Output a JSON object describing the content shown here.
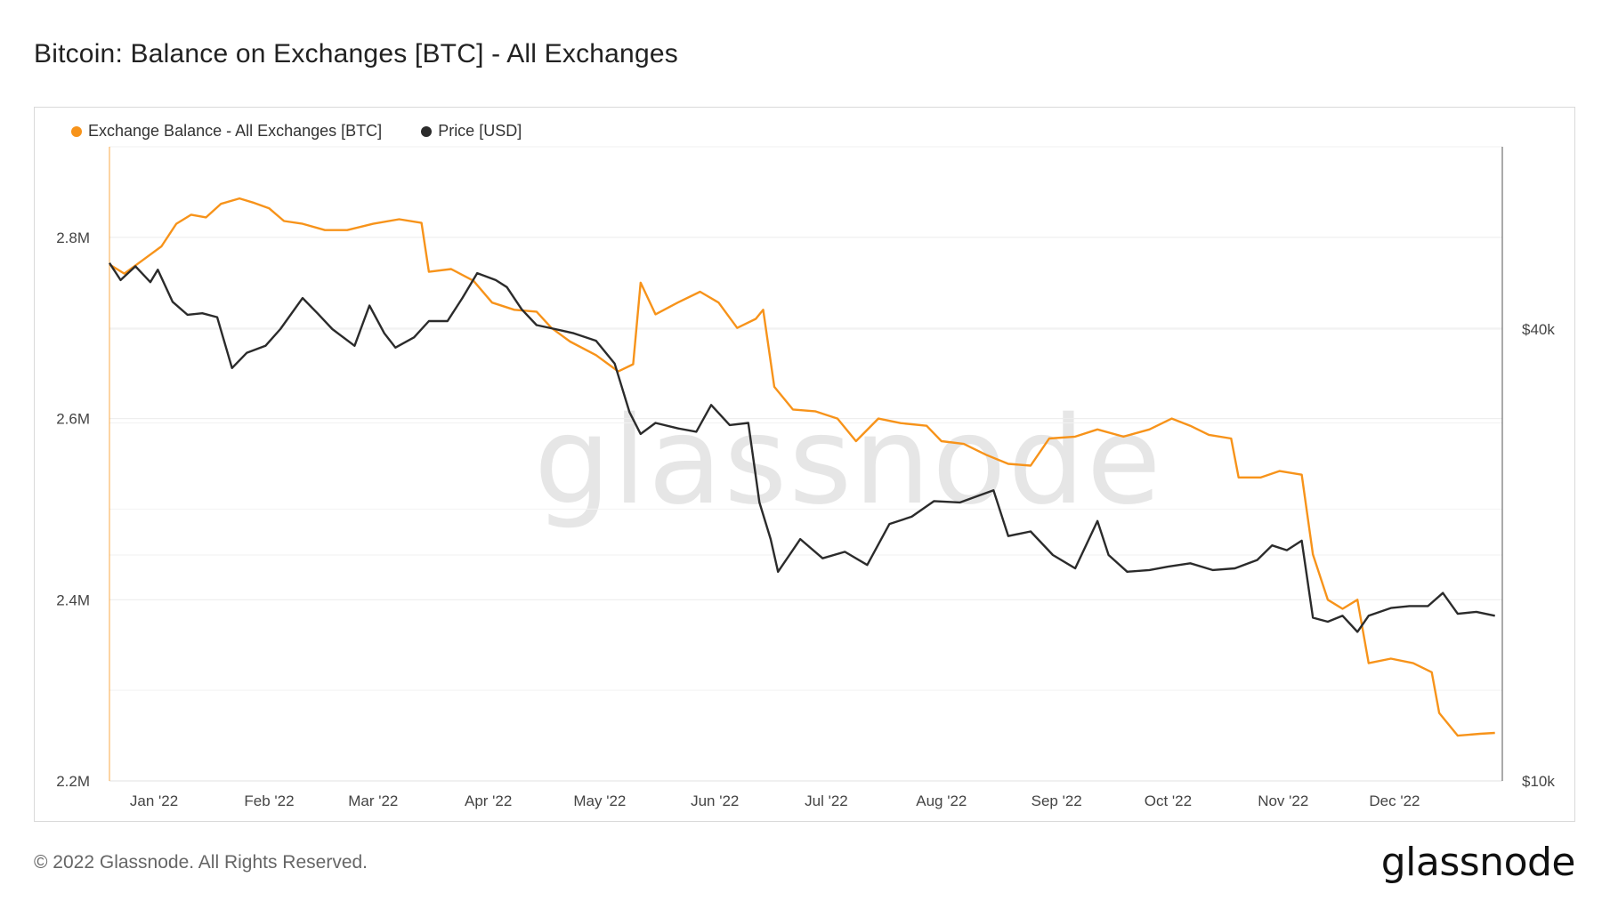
{
  "title": "Bitcoin: Balance on Exchanges [BTC] - All Exchanges",
  "footer": {
    "copyright": "© 2022 Glassnode. All Rights Reserved.",
    "logo": "glassnode"
  },
  "watermark": "glassnode",
  "chart_data": {
    "type": "line",
    "title": "Bitcoin: Balance on Exchanges [BTC] - All Exchanges",
    "x_range": [
      "2021-12-20",
      "2022-12-30"
    ],
    "x_ticks": [
      {
        "date": "2022-01-01",
        "label": "Jan '22"
      },
      {
        "date": "2022-02-01",
        "label": "Feb '22"
      },
      {
        "date": "2022-03-01",
        "label": "Mar '22"
      },
      {
        "date": "2022-04-01",
        "label": "Apr '22"
      },
      {
        "date": "2022-05-01",
        "label": "May '22"
      },
      {
        "date": "2022-06-01",
        "label": "Jun '22"
      },
      {
        "date": "2022-07-01",
        "label": "Jul '22"
      },
      {
        "date": "2022-08-01",
        "label": "Aug '22"
      },
      {
        "date": "2022-09-01",
        "label": "Sep '22"
      },
      {
        "date": "2022-10-01",
        "label": "Oct '22"
      },
      {
        "date": "2022-11-01",
        "label": "Nov '22"
      },
      {
        "date": "2022-12-01",
        "label": "Dec '22"
      }
    ],
    "y_left": {
      "scale": "linear",
      "ylim": [
        2200000,
        2900000
      ],
      "ticks": [
        {
          "value": 2200000,
          "label": "2.2M"
        },
        {
          "value": 2400000,
          "label": "2.4M"
        },
        {
          "value": 2600000,
          "label": "2.6M"
        },
        {
          "value": 2800000,
          "label": "2.8M"
        }
      ]
    },
    "y_right": {
      "scale": "log",
      "ylim": [
        10000,
        70000
      ],
      "ticks": [
        {
          "value": 10000,
          "label": "$10k"
        },
        {
          "value": 40000,
          "label": "$40k"
        }
      ]
    },
    "grid": true,
    "legend_position": "top-left",
    "series": [
      {
        "name": "Exchange Balance - All Exchanges [BTC]",
        "axis": "left",
        "color": "#f7931a",
        "points": [
          [
            "2021-12-20",
            2770000
          ],
          [
            "2021-12-24",
            2760000
          ],
          [
            "2021-12-29",
            2775000
          ],
          [
            "2022-01-03",
            2790000
          ],
          [
            "2022-01-07",
            2815000
          ],
          [
            "2022-01-11",
            2825000
          ],
          [
            "2022-01-15",
            2822000
          ],
          [
            "2022-01-19",
            2837000
          ],
          [
            "2022-01-24",
            2843000
          ],
          [
            "2022-01-28",
            2838000
          ],
          [
            "2022-02-01",
            2832000
          ],
          [
            "2022-02-05",
            2818000
          ],
          [
            "2022-02-10",
            2815000
          ],
          [
            "2022-02-16",
            2808000
          ],
          [
            "2022-02-22",
            2808000
          ],
          [
            "2022-03-01",
            2815000
          ],
          [
            "2022-03-08",
            2820000
          ],
          [
            "2022-03-14",
            2816000
          ],
          [
            "2022-03-16",
            2762000
          ],
          [
            "2022-03-22",
            2765000
          ],
          [
            "2022-03-28",
            2752000
          ],
          [
            "2022-04-02",
            2728000
          ],
          [
            "2022-04-08",
            2720000
          ],
          [
            "2022-04-14",
            2718000
          ],
          [
            "2022-04-18",
            2700000
          ],
          [
            "2022-04-23",
            2685000
          ],
          [
            "2022-04-30",
            2670000
          ],
          [
            "2022-05-06",
            2652000
          ],
          [
            "2022-05-10",
            2660000
          ],
          [
            "2022-05-12",
            2750000
          ],
          [
            "2022-05-16",
            2715000
          ],
          [
            "2022-05-22",
            2728000
          ],
          [
            "2022-05-28",
            2740000
          ],
          [
            "2022-06-02",
            2728000
          ],
          [
            "2022-06-07",
            2700000
          ],
          [
            "2022-06-12",
            2710000
          ],
          [
            "2022-06-14",
            2720000
          ],
          [
            "2022-06-17",
            2635000
          ],
          [
            "2022-06-22",
            2610000
          ],
          [
            "2022-06-28",
            2608000
          ],
          [
            "2022-07-04",
            2600000
          ],
          [
            "2022-07-09",
            2575000
          ],
          [
            "2022-07-15",
            2600000
          ],
          [
            "2022-07-21",
            2595000
          ],
          [
            "2022-07-28",
            2592000
          ],
          [
            "2022-08-01",
            2575000
          ],
          [
            "2022-08-07",
            2572000
          ],
          [
            "2022-08-13",
            2560000
          ],
          [
            "2022-08-19",
            2550000
          ],
          [
            "2022-08-25",
            2548000
          ],
          [
            "2022-08-30",
            2578000
          ],
          [
            "2022-09-06",
            2580000
          ],
          [
            "2022-09-12",
            2588000
          ],
          [
            "2022-09-19",
            2580000
          ],
          [
            "2022-09-26",
            2588000
          ],
          [
            "2022-10-02",
            2600000
          ],
          [
            "2022-10-07",
            2592000
          ],
          [
            "2022-10-12",
            2582000
          ],
          [
            "2022-10-18",
            2578000
          ],
          [
            "2022-10-20",
            2535000
          ],
          [
            "2022-10-26",
            2535000
          ],
          [
            "2022-10-31",
            2542000
          ],
          [
            "2022-11-06",
            2538000
          ],
          [
            "2022-11-09",
            2450000
          ],
          [
            "2022-11-13",
            2400000
          ],
          [
            "2022-11-17",
            2390000
          ],
          [
            "2022-11-21",
            2400000
          ],
          [
            "2022-11-24",
            2330000
          ],
          [
            "2022-11-30",
            2335000
          ],
          [
            "2022-12-06",
            2330000
          ],
          [
            "2022-12-11",
            2320000
          ],
          [
            "2022-12-13",
            2275000
          ],
          [
            "2022-12-18",
            2250000
          ],
          [
            "2022-12-24",
            2252000
          ],
          [
            "2022-12-28",
            2253000
          ]
        ]
      },
      {
        "name": "Price [USD]",
        "axis": "right",
        "color": "#2b2b2b",
        "points": [
          [
            "2021-12-20",
            49000
          ],
          [
            "2021-12-23",
            46500
          ],
          [
            "2021-12-27",
            48500
          ],
          [
            "2021-12-31",
            46200
          ],
          [
            "2022-01-02",
            48000
          ],
          [
            "2022-01-06",
            43500
          ],
          [
            "2022-01-10",
            41800
          ],
          [
            "2022-01-14",
            42000
          ],
          [
            "2022-01-18",
            41500
          ],
          [
            "2022-01-22",
            35500
          ],
          [
            "2022-01-26",
            37200
          ],
          [
            "2022-01-31",
            38000
          ],
          [
            "2022-02-04",
            40000
          ],
          [
            "2022-02-10",
            44000
          ],
          [
            "2022-02-14",
            42000
          ],
          [
            "2022-02-18",
            40000
          ],
          [
            "2022-02-24",
            38000
          ],
          [
            "2022-02-28",
            43000
          ],
          [
            "2022-03-04",
            39500
          ],
          [
            "2022-03-07",
            37800
          ],
          [
            "2022-03-12",
            39000
          ],
          [
            "2022-03-16",
            41000
          ],
          [
            "2022-03-21",
            41000
          ],
          [
            "2022-03-25",
            44000
          ],
          [
            "2022-03-29",
            47500
          ],
          [
            "2022-04-03",
            46500
          ],
          [
            "2022-04-06",
            45500
          ],
          [
            "2022-04-10",
            42500
          ],
          [
            "2022-04-14",
            40500
          ],
          [
            "2022-04-19",
            40000
          ],
          [
            "2022-04-24",
            39500
          ],
          [
            "2022-04-30",
            38600
          ],
          [
            "2022-05-05",
            36000
          ],
          [
            "2022-05-09",
            31000
          ],
          [
            "2022-05-12",
            29000
          ],
          [
            "2022-05-16",
            30000
          ],
          [
            "2022-05-22",
            29500
          ],
          [
            "2022-05-27",
            29200
          ],
          [
            "2022-05-31",
            31700
          ],
          [
            "2022-06-05",
            29800
          ],
          [
            "2022-06-10",
            30000
          ],
          [
            "2022-06-13",
            23500
          ],
          [
            "2022-06-16",
            21000
          ],
          [
            "2022-06-18",
            19000
          ],
          [
            "2022-06-24",
            21000
          ],
          [
            "2022-06-30",
            19800
          ],
          [
            "2022-07-06",
            20200
          ],
          [
            "2022-07-12",
            19400
          ],
          [
            "2022-07-18",
            22000
          ],
          [
            "2022-07-24",
            22500
          ],
          [
            "2022-07-30",
            23600
          ],
          [
            "2022-08-06",
            23500
          ],
          [
            "2022-08-11",
            24000
          ],
          [
            "2022-08-15",
            24400
          ],
          [
            "2022-08-19",
            21200
          ],
          [
            "2022-08-25",
            21500
          ],
          [
            "2022-08-31",
            20000
          ],
          [
            "2022-09-06",
            19200
          ],
          [
            "2022-09-12",
            22200
          ],
          [
            "2022-09-15",
            20000
          ],
          [
            "2022-09-20",
            19000
          ],
          [
            "2022-09-26",
            19100
          ],
          [
            "2022-10-01",
            19300
          ],
          [
            "2022-10-07",
            19500
          ],
          [
            "2022-10-13",
            19100
          ],
          [
            "2022-10-19",
            19200
          ],
          [
            "2022-10-25",
            19700
          ],
          [
            "2022-10-29",
            20600
          ],
          [
            "2022-11-02",
            20300
          ],
          [
            "2022-11-06",
            20900
          ],
          [
            "2022-11-09",
            16500
          ],
          [
            "2022-11-13",
            16300
          ],
          [
            "2022-11-17",
            16600
          ],
          [
            "2022-11-21",
            15800
          ],
          [
            "2022-11-24",
            16600
          ],
          [
            "2022-11-30",
            17000
          ],
          [
            "2022-12-05",
            17100
          ],
          [
            "2022-12-10",
            17100
          ],
          [
            "2022-12-14",
            17800
          ],
          [
            "2022-12-18",
            16700
          ],
          [
            "2022-12-23",
            16800
          ],
          [
            "2022-12-28",
            16600
          ]
        ]
      }
    ]
  }
}
